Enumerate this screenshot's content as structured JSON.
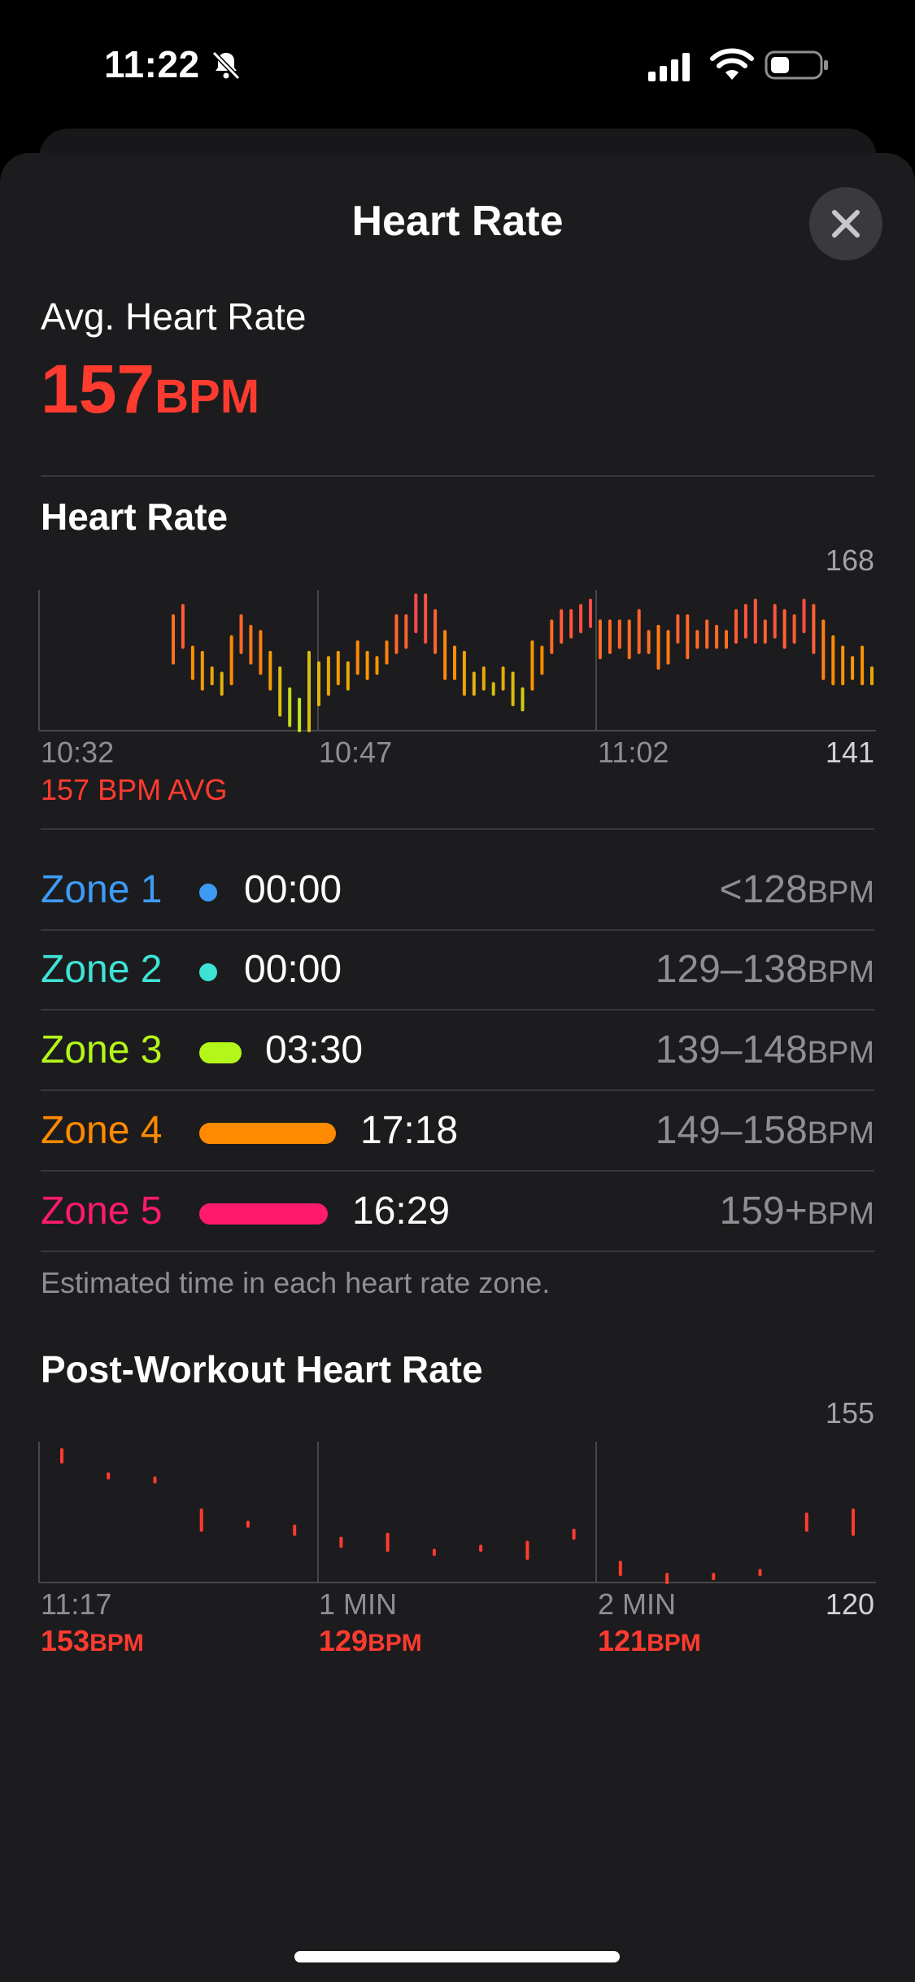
{
  "status_bar": {
    "time": "11:22"
  },
  "header": {
    "title": "Heart Rate",
    "close_icon": "close-icon"
  },
  "summary": {
    "label": "Avg. Heart Rate",
    "value": "157",
    "unit": "BPM"
  },
  "hr_chart": {
    "title": "Heart Rate",
    "y_max_label": "168",
    "y_min_label": "141",
    "x_labels": [
      "10:32",
      "10:47",
      "11:02"
    ],
    "avg_caption": "157 BPM AVG"
  },
  "zones": [
    {
      "name": "Zone 1",
      "color": "#3d9bf5",
      "time": "00:00",
      "range": "<128",
      "unit": "BPM"
    },
    {
      "name": "Zone 2",
      "color": "#3ee3d6",
      "time": "00:00",
      "range": "129–138",
      "unit": "BPM"
    },
    {
      "name": "Zone 3",
      "color": "#b4f51a",
      "time": "03:30",
      "range": "139–148",
      "unit": "BPM"
    },
    {
      "name": "Zone 4",
      "color": "#ff8a00",
      "time": "17:18",
      "range": "149–158",
      "unit": "BPM"
    },
    {
      "name": "Zone 5",
      "color": "#ff1a6b",
      "time": "16:29",
      "range": "159+",
      "unit": "BPM"
    }
  ],
  "zone_note": "Estimated time in each heart rate zone.",
  "post_chart": {
    "title": "Post-Workout Heart Rate",
    "y_max_label": "155",
    "y_min_label": "120",
    "x_labels": [
      "11:17",
      "1 MIN",
      "2 MIN"
    ],
    "values": [
      "153",
      "129",
      "121"
    ],
    "unit": "BPM"
  },
  "chart_data": [
    {
      "type": "bar",
      "title": "Heart Rate",
      "ylim": [
        141,
        168
      ],
      "x_tick_labels": [
        "10:32",
        "10:47",
        "11:02"
      ],
      "avg": 157,
      "series": [
        {
          "values": [
            [
              154,
              163
            ],
            [
              157,
              165
            ],
            [
              151,
              157
            ],
            [
              149,
              156
            ],
            [
              150,
              153
            ],
            [
              148,
              152
            ],
            [
              150,
              159
            ],
            [
              156,
              163
            ],
            [
              154,
              161
            ],
            [
              152,
              160
            ],
            [
              149,
              156
            ],
            [
              144,
              153
            ],
            [
              142,
              149
            ],
            [
              141,
              147
            ],
            [
              141,
              156
            ],
            [
              146,
              154
            ],
            [
              148,
              155
            ],
            [
              150,
              156
            ],
            [
              149,
              154
            ],
            [
              152,
              158
            ],
            [
              151,
              156
            ],
            [
              152,
              155
            ],
            [
              154,
              158
            ],
            [
              156,
              163
            ],
            [
              157,
              163
            ],
            [
              160,
              167
            ],
            [
              158,
              167
            ],
            [
              156,
              164
            ],
            [
              151,
              160
            ],
            [
              151,
              157
            ],
            [
              148,
              156
            ],
            [
              148,
              152
            ],
            [
              149,
              153
            ],
            [
              148,
              150
            ],
            [
              149,
              153
            ],
            [
              146,
              152
            ],
            [
              145,
              149
            ],
            [
              149,
              158
            ],
            [
              152,
              157
            ],
            [
              156,
              162
            ],
            [
              158,
              164
            ],
            [
              159,
              164
            ],
            [
              160,
              165
            ],
            [
              161,
              166
            ],
            [
              155,
              162
            ],
            [
              156,
              162
            ],
            [
              157,
              162
            ],
            [
              155,
              162
            ],
            [
              156,
              164
            ],
            [
              156,
              160
            ],
            [
              153,
              161
            ],
            [
              154,
              160
            ],
            [
              158,
              163
            ],
            [
              155,
              163
            ],
            [
              157,
              160
            ],
            [
              157,
              162
            ],
            [
              157,
              161
            ],
            [
              157,
              160
            ],
            [
              158,
              164
            ],
            [
              159,
              165
            ],
            [
              158,
              166
            ],
            [
              158,
              162
            ],
            [
              159,
              165
            ],
            [
              157,
              164
            ],
            [
              158,
              163
            ],
            [
              160,
              166
            ],
            [
              156,
              165
            ],
            [
              151,
              162
            ],
            [
              150,
              159
            ],
            [
              150,
              157
            ],
            [
              151,
              155
            ],
            [
              150,
              157
            ],
            [
              150,
              153
            ]
          ]
        }
      ]
    },
    {
      "type": "bar",
      "title": "Post-Workout Heart Rate",
      "ylim": [
        120,
        155
      ],
      "x_tick_labels": [
        "11:17",
        "1 MIN",
        "2 MIN"
      ],
      "series": [
        {
          "values": [
            [
              150,
              153
            ],
            [
              146,
              147
            ],
            [
              145,
              146
            ],
            [
              133,
              138
            ],
            [
              134,
              135
            ],
            [
              132,
              134
            ],
            [
              129,
              131
            ],
            [
              128,
              132
            ],
            [
              127,
              128
            ],
            [
              128,
              129
            ],
            [
              126,
              130
            ],
            [
              131,
              133
            ],
            [
              122,
              125
            ],
            [
              120,
              122
            ],
            [
              121,
              122
            ],
            [
              122,
              123
            ],
            [
              133,
              137
            ],
            [
              132,
              138
            ]
          ]
        }
      ]
    }
  ]
}
